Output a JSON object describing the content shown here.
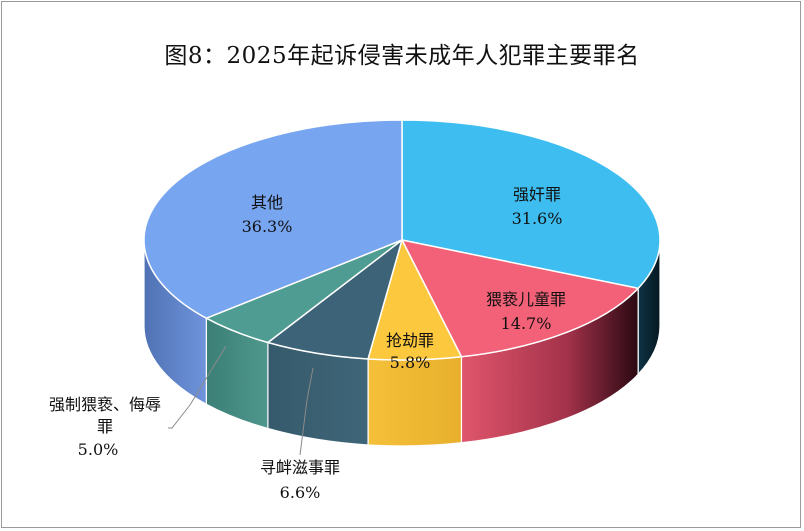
{
  "chart_data": {
    "type": "pie",
    "title": "图8：2025年起诉侵害未成年人犯罪主要罪名",
    "slices": [
      {
        "name": "强奸罪",
        "value": 31.6,
        "label": "31.6%",
        "color": "#3dbdf0",
        "dark": "#0b2a3c"
      },
      {
        "name": "猥亵儿童罪",
        "value": 14.7,
        "label": "14.7%",
        "color": "#f26178",
        "dark": "#2e0a16"
      },
      {
        "name": "抢劫罪",
        "value": 5.8,
        "label": "5.8%",
        "color": "#fcc93e",
        "dark": "#fcc93e"
      },
      {
        "name": "寻衅滋事罪",
        "value": 6.6,
        "label": "6.6%",
        "color": "#3d6378",
        "dark": "#3d6378"
      },
      {
        "name": "强制猥亵、侮辱罪",
        "value": 5.0,
        "label": "5.0%",
        "color": "#4f9c92",
        "dark": "#4f9c92"
      },
      {
        "name": "其他",
        "value": 36.3,
        "label": "36.3%",
        "color": "#78a5f0",
        "dark": "#4a6fae"
      }
    ]
  },
  "labels": {
    "qiangjian_name": "强奸罪",
    "qiangjian_pct": "31.6%",
    "weixie_name": "猥亵儿童罪",
    "weixie_pct": "14.7%",
    "qiangjie_name": "抢劫罪",
    "qiangjie_pct": "5.8%",
    "xunxin_name": "寻衅滋事罪",
    "xunxin_pct": "6.6%",
    "qiangzhi_name1": "强制猥亵、侮辱",
    "qiangzhi_name2": "罪",
    "qiangzhi_pct": "5.0%",
    "qita_name": "其他",
    "qita_pct": "36.3%"
  }
}
